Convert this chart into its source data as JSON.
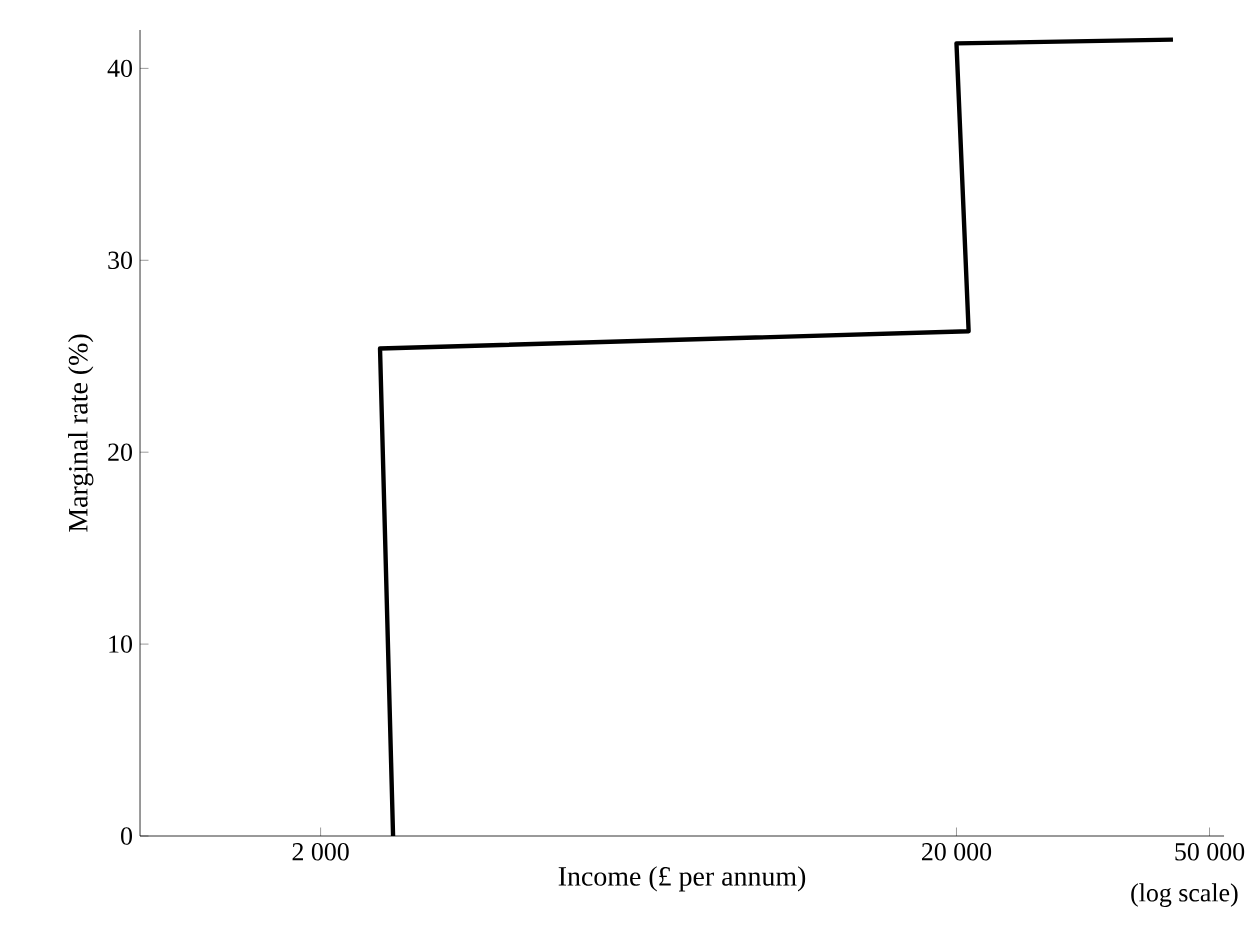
{
  "chart_data": {
    "type": "line",
    "xlabel": "Income (£ per annum)",
    "ylabel": "Marginal rate (%)",
    "log": "x",
    "x": [
      2600,
      2480,
      20900,
      20000,
      43800
    ],
    "values": [
      0,
      25.4,
      26.3,
      41.3,
      41.5
    ],
    "color": "#000000",
    "marker": "none",
    "line_style": "solid",
    "grid": false,
    "xlim": [
      1040,
      52700
    ],
    "ylim": [
      0,
      42
    ],
    "xticks": [
      {
        "value": 2000,
        "label": "2 000"
      },
      {
        "value": 20000,
        "label": "20 000"
      },
      {
        "value": 50000,
        "label": "50 000"
      }
    ],
    "yticks": [
      0,
      10,
      20,
      30,
      40
    ],
    "annotations": [
      "(log scale)"
    ]
  }
}
